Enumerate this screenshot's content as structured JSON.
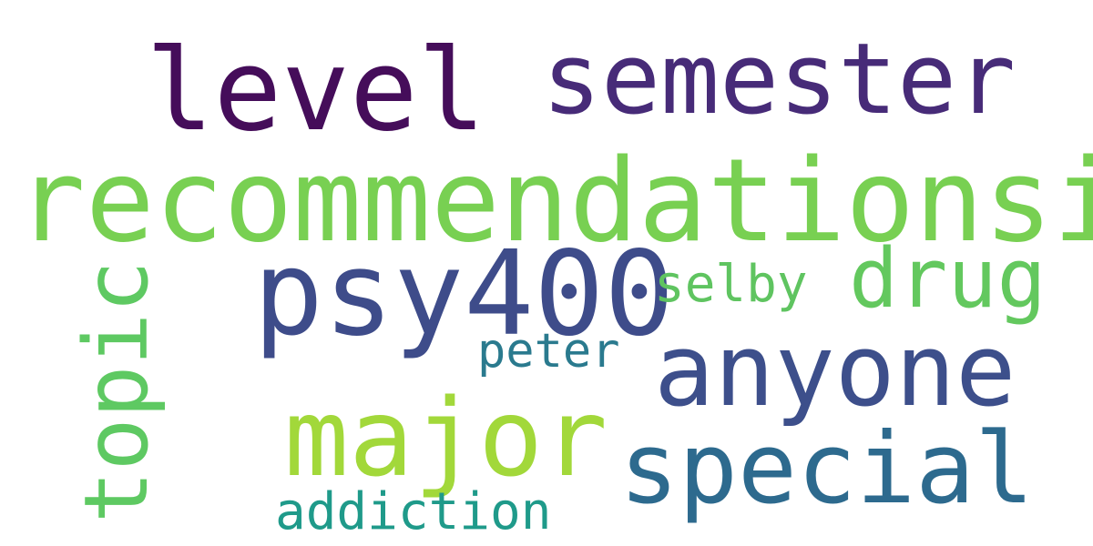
{
  "cloud": {
    "words": {
      "level": {
        "text": "level",
        "color": "#450d5a"
      },
      "semester": {
        "text": "semester",
        "color": "#472b78"
      },
      "recommendationsi": {
        "text": "recommendationsi",
        "color": "#78d052"
      },
      "psy400": {
        "text": "psy400",
        "color": "#3e4c8a"
      },
      "drug": {
        "text": "drug",
        "color": "#63c85e"
      },
      "selby": {
        "text": "selby",
        "color": "#5fc460"
      },
      "peter": {
        "text": "peter",
        "color": "#2a7a8e"
      },
      "anyone": {
        "text": "anyone",
        "color": "#3d4f8b"
      },
      "major": {
        "text": "major",
        "color": "#a2d83a"
      },
      "special": {
        "text": "special",
        "color": "#2d6a8e"
      },
      "addiction": {
        "text": "addiction",
        "color": "#1f9a8a"
      },
      "topic": {
        "text": "topic",
        "color": "#5ec962"
      }
    }
  }
}
